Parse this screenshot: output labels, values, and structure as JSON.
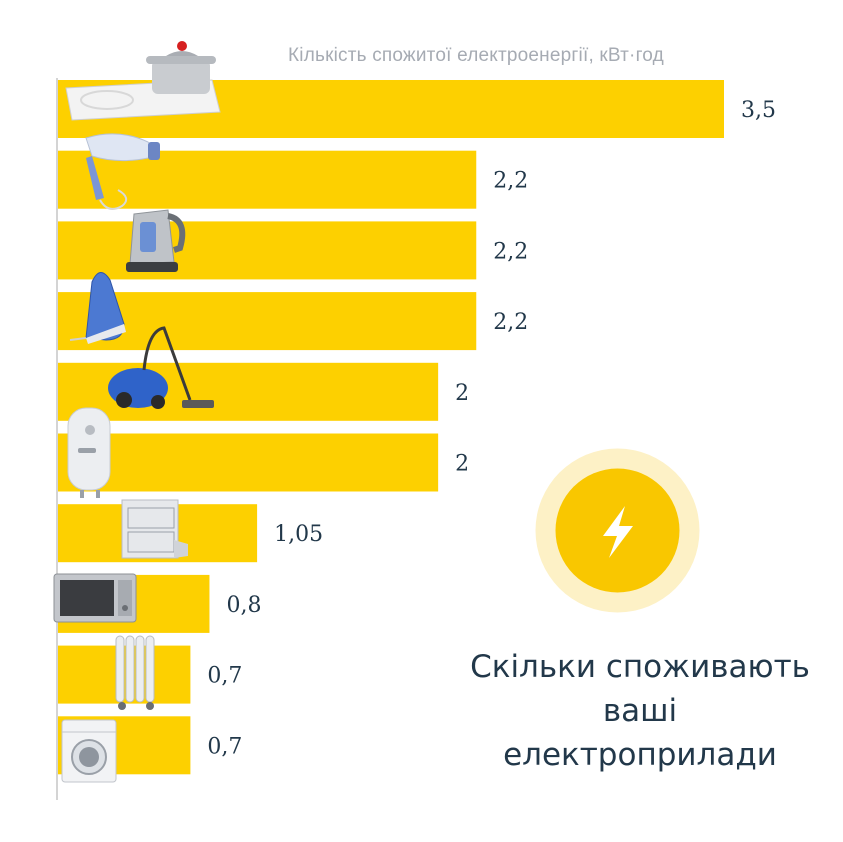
{
  "unit_label": "Кількість спожитої електроенергії, кВт·год",
  "headline": "Скільки споживають ваші електроприлади",
  "colors": {
    "bar": "#fdd000",
    "value_text": "#22384a",
    "badge_outer": "#fdf1c6",
    "badge_inner": "#f9c700"
  },
  "icons": [
    "induction-cooktop-icon",
    "hair-dryer-icon",
    "electric-kettle-icon",
    "steam-iron-icon",
    "vacuum-cleaner-icon",
    "water-heater-icon",
    "dishwasher-icon",
    "microwave-icon",
    "oil-heater-icon",
    "washing-machine-icon",
    "lightning-icon"
  ],
  "chart_data": {
    "type": "bar",
    "orientation": "horizontal",
    "categories": [
      "",
      "",
      "",
      "",
      "",
      "",
      "",
      "",
      "",
      ""
    ],
    "values": [
      3.5,
      2.2,
      2.2,
      2.2,
      2,
      2,
      1.05,
      0.8,
      0.7,
      0.7
    ],
    "value_labels": [
      "3,5",
      "2,2",
      "2,2",
      "2,2",
      "2",
      "2",
      "1,05",
      "0,8",
      "0,7",
      "0,7"
    ],
    "xlabel": "Кількість спожитої електроенергії, кВт·год",
    "xlim": [
      0,
      3.5
    ],
    "grid": false
  }
}
